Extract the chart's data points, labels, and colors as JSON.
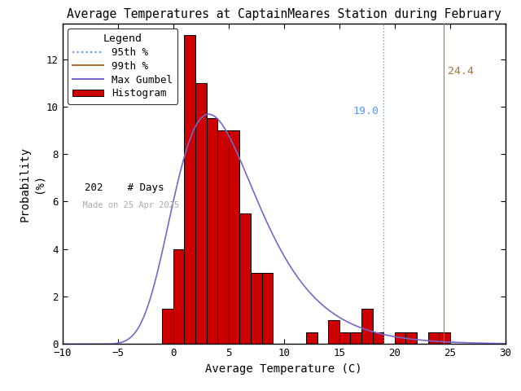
{
  "title": "Average Temperatures at CaptainMeares Station during February",
  "xlabel": "Average Temperature (C)",
  "ylabel": "Probability\n(%)",
  "xlim": [
    -10,
    30
  ],
  "ylim": [
    0,
    13.5
  ],
  "yticks": [
    0,
    2,
    4,
    6,
    8,
    10,
    12
  ],
  "xticks": [
    -10,
    -5,
    0,
    5,
    10,
    15,
    20,
    25,
    30
  ],
  "bin_left_edges": [
    -1,
    0,
    1,
    2,
    3,
    4,
    5,
    6,
    7,
    8,
    9,
    10,
    11,
    12,
    13,
    14,
    15,
    16,
    17,
    18,
    19,
    20,
    21,
    22,
    23,
    24,
    25,
    26,
    27,
    28,
    29
  ],
  "bar_heights": [
    1.5,
    4.0,
    13.0,
    11.0,
    9.5,
    9.0,
    9.0,
    5.5,
    3.0,
    3.0,
    0.0,
    0.0,
    0.0,
    0.5,
    0.0,
    1.0,
    0.5,
    0.5,
    1.5,
    0.5,
    0.0,
    0.5,
    0.5,
    0.0,
    0.5,
    0.5,
    0.0,
    0.0,
    0.0,
    0.0,
    0.0
  ],
  "bar_color": "#cc0000",
  "bar_edge_color": "#000000",
  "bg_color": "#ffffff",
  "percentile_95": 19.0,
  "percentile_99": 24.4,
  "percentile_95_color": "#5599ff",
  "percentile_99_color": "#aa7733",
  "percentile_95_label_color": "#5599ff",
  "percentile_99_label_color": "#aa7733",
  "gumbel_color": "#7766cc",
  "n_days": 202,
  "made_on": "Made on 25 Apr 2025",
  "gumbel_mu": 3.2,
  "gumbel_beta": 3.8,
  "gumbel_scale": 100.0
}
